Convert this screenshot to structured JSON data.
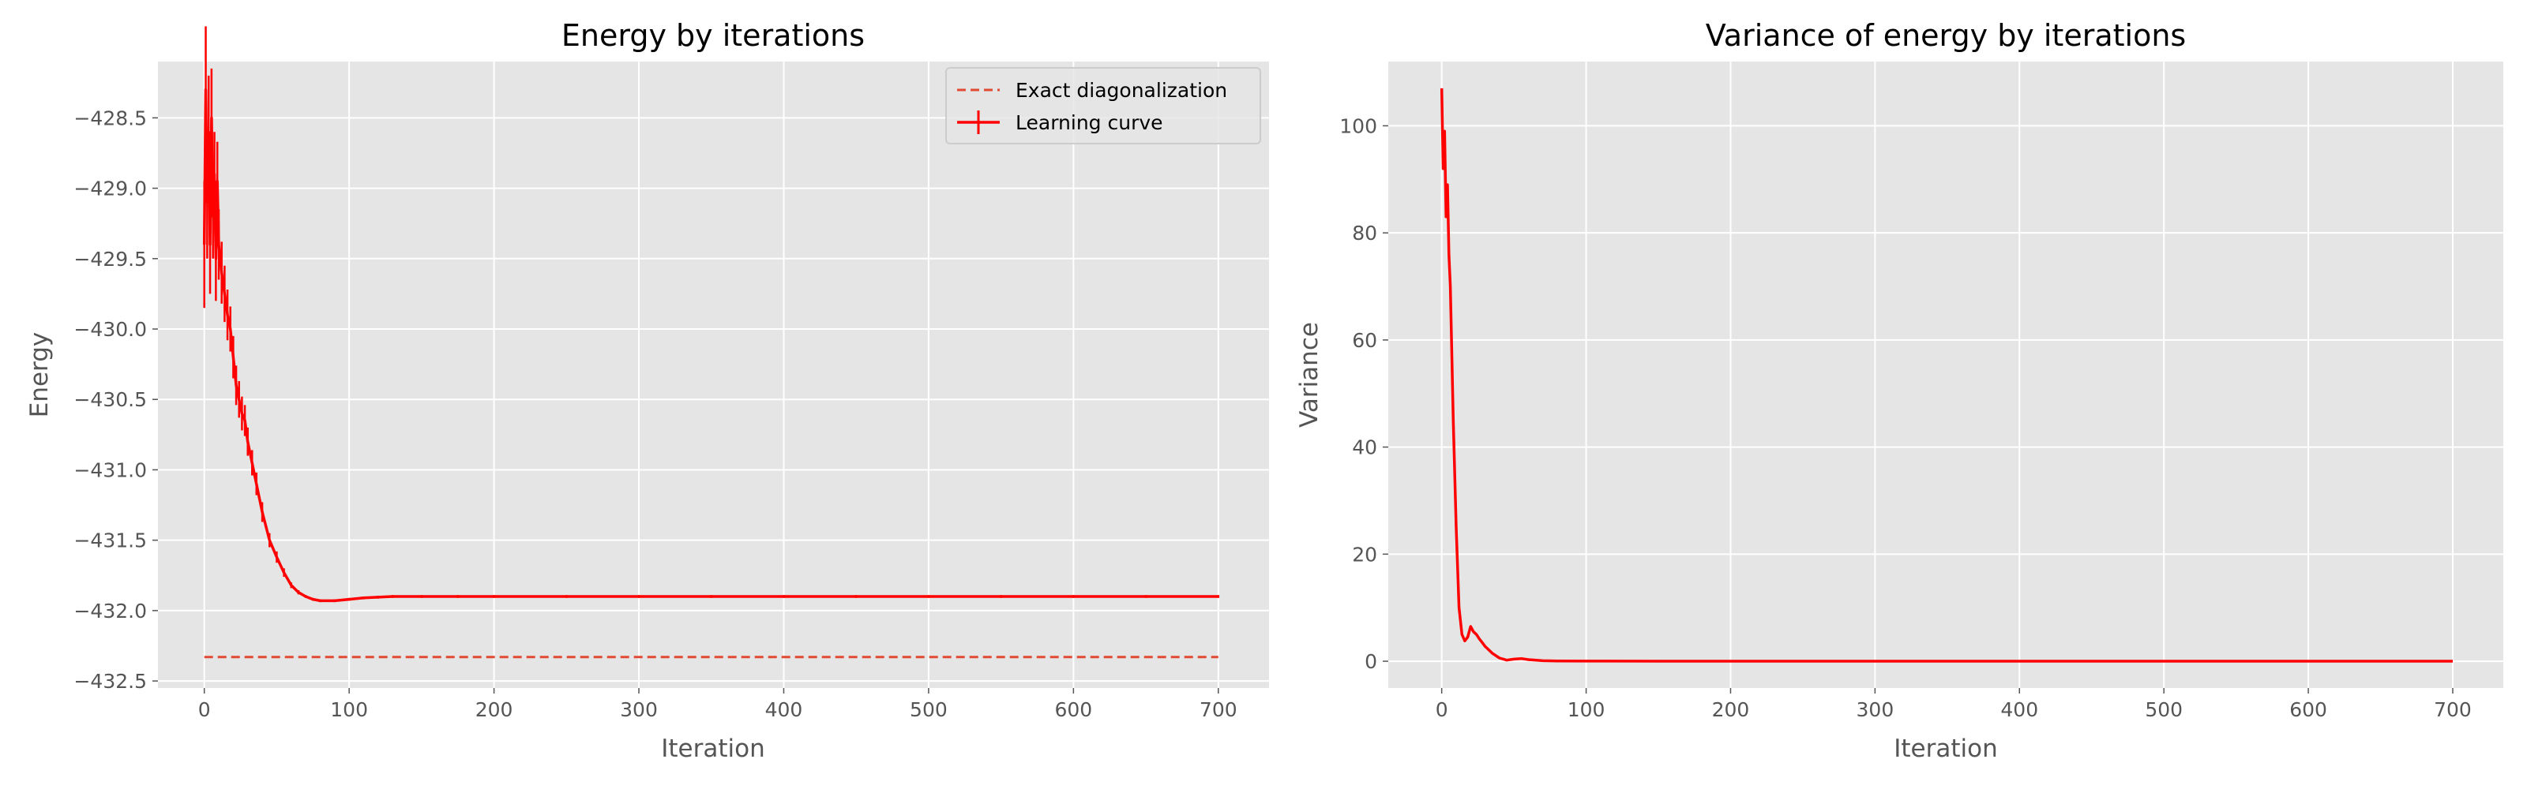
{
  "figure": {
    "background": "#ffffff",
    "axes_facecolor": "#e5e5e5",
    "grid_color": "#ffffff",
    "line_color": "#ff0000",
    "exact_color": "#e24a33"
  },
  "chart_data": [
    {
      "id": "energy",
      "type": "line",
      "title": "Energy by iterations",
      "xlabel": "Iteration",
      "ylabel": "Energy",
      "xlim": [
        -32,
        735
      ],
      "ylim": [
        -432.55,
        -428.1
      ],
      "xticks": [
        0,
        100,
        200,
        300,
        400,
        500,
        600,
        700
      ],
      "xtick_labels": [
        "0",
        "100",
        "200",
        "300",
        "400",
        "500",
        "600",
        "700"
      ],
      "yticks": [
        -432.5,
        -432.0,
        -431.5,
        -431.0,
        -430.5,
        -430.0,
        -429.5,
        -429.0,
        -428.5
      ],
      "ytick_labels": [
        "−432.5",
        "−432.0",
        "−431.5",
        "−431.0",
        "−430.5",
        "−430.0",
        "−429.5",
        "−429.0",
        "−428.5"
      ],
      "grid": true,
      "legend_position": "top-right",
      "series": [
        {
          "name": "Exact diagonalization",
          "style": "dashed",
          "color": "#e24a33",
          "x": [
            0,
            700
          ],
          "y": [
            -432.33,
            -432.33
          ]
        },
        {
          "name": "Learning curve",
          "style": "solid-errorbar",
          "color": "#ff0000",
          "x": [
            0,
            1,
            2,
            3,
            4,
            5,
            6,
            7,
            8,
            9,
            10,
            12,
            14,
            16,
            18,
            20,
            22,
            24,
            26,
            28,
            30,
            33,
            36,
            40,
            45,
            50,
            55,
            60,
            65,
            70,
            75,
            80,
            90,
            100,
            110,
            120,
            130,
            150,
            175,
            200,
            250,
            300,
            350,
            400,
            450,
            500,
            550,
            600,
            650,
            700
          ],
          "y": [
            -429.4,
            -428.3,
            -429.1,
            -428.6,
            -429.4,
            -428.5,
            -429.2,
            -428.9,
            -429.5,
            -428.95,
            -429.4,
            -429.6,
            -429.75,
            -429.9,
            -430.0,
            -430.2,
            -430.4,
            -430.5,
            -430.6,
            -430.65,
            -430.8,
            -430.95,
            -431.1,
            -431.3,
            -431.5,
            -431.62,
            -431.73,
            -431.82,
            -431.87,
            -431.9,
            -431.92,
            -431.93,
            -431.93,
            -431.92,
            -431.91,
            -431.905,
            -431.9,
            -431.9,
            -431.9,
            -431.9,
            -431.9,
            -431.9,
            -431.9,
            -431.9,
            -431.9,
            -431.9,
            -431.9,
            -431.9,
            -431.9,
            -431.9
          ],
          "yerr": [
            0.45,
            0.45,
            0.4,
            0.4,
            0.35,
            0.35,
            0.3,
            0.3,
            0.3,
            0.28,
            0.25,
            0.22,
            0.2,
            0.18,
            0.16,
            0.15,
            0.14,
            0.13,
            0.12,
            0.11,
            0.1,
            0.09,
            0.08,
            0.07,
            0.05,
            0.04,
            0.03,
            0.02,
            0.015,
            0.01,
            0.01,
            0.01,
            0.01,
            0.01,
            0.01,
            0.01,
            0.01,
            0.01,
            0.01,
            0.01,
            0.01,
            0.01,
            0.01,
            0.01,
            0.01,
            0.01,
            0.01,
            0.01,
            0.01,
            0.01
          ]
        }
      ]
    },
    {
      "id": "variance",
      "type": "line",
      "title": "Variance of energy by iterations",
      "xlabel": "Iteration",
      "ylabel": "Variance",
      "xlim": [
        -37,
        735
      ],
      "ylim": [
        -5,
        112
      ],
      "xticks": [
        0,
        100,
        200,
        300,
        400,
        500,
        600,
        700
      ],
      "xtick_labels": [
        "0",
        "100",
        "200",
        "300",
        "400",
        "500",
        "600",
        "700"
      ],
      "yticks": [
        0,
        20,
        40,
        60,
        80,
        100
      ],
      "ytick_labels": [
        "0",
        "20",
        "40",
        "60",
        "80",
        "100"
      ],
      "grid": true,
      "series": [
        {
          "color": "#ff0000",
          "x": [
            0,
            1,
            2,
            3,
            4,
            5,
            6,
            8,
            10,
            12,
            14,
            16,
            18,
            20,
            22,
            24,
            26,
            28,
            30,
            35,
            40,
            45,
            50,
            55,
            60,
            70,
            80,
            100,
            150,
            200,
            300,
            400,
            500,
            600,
            700
          ],
          "y": [
            107,
            92,
            99,
            83,
            89,
            76,
            70,
            45,
            25,
            10,
            5,
            3.8,
            4.5,
            6.5,
            5.5,
            5.0,
            4.2,
            3.5,
            2.8,
            1.5,
            0.6,
            0.2,
            0.4,
            0.5,
            0.3,
            0.1,
            0.05,
            0.02,
            0.01,
            0.01,
            0.01,
            0.01,
            0.01,
            0.01,
            0.01
          ]
        }
      ]
    }
  ]
}
